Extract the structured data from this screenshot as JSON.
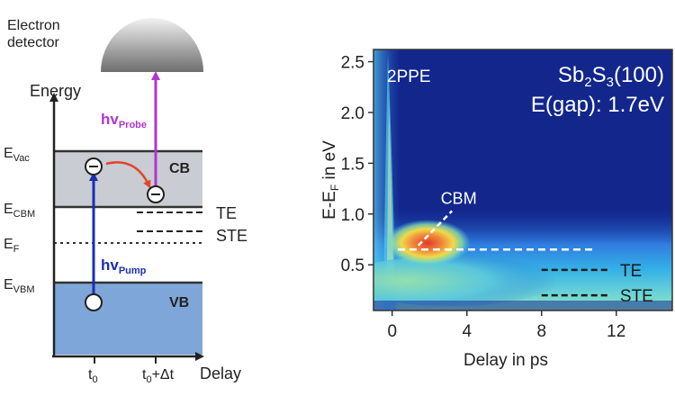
{
  "detector": {
    "line1": "Electron",
    "line2": "detector"
  },
  "diagram": {
    "y_axis_label": "Energy",
    "x_axis_label": "Delay",
    "levels": {
      "vac": {
        "main": "E",
        "sub": "Vac"
      },
      "cbm": {
        "main": "E",
        "sub": "CBM"
      },
      "f": {
        "main": "E",
        "sub": "F"
      },
      "vbm": {
        "main": "E",
        "sub": "VBM"
      }
    },
    "cb_label": "CB",
    "vb_label": "VB",
    "te_label": "TE",
    "ste_label": "STE",
    "probe": {
      "main": "hv",
      "sub": "Probe"
    },
    "pump": {
      "main": "hv",
      "sub": "Pump"
    },
    "t0": {
      "main": "t",
      "sub": "0"
    },
    "t0dt": {
      "main": "t",
      "sub": "0",
      "rest": "+Δt"
    }
  },
  "chart_data": {
    "type": "heatmap",
    "xlabel": "Delay in ps",
    "ylabel_parts": {
      "a": "E-E",
      "sub": "F",
      "b": " in eV"
    },
    "x_ticks": [
      0,
      4,
      8,
      12
    ],
    "y_ticks": [
      0.5,
      1.0,
      1.5,
      2.0,
      2.5
    ],
    "y_tick_labels": [
      "0.5",
      "1.0",
      "1.5",
      "2.0",
      "2.5"
    ],
    "xlim": [
      -1,
      15
    ],
    "ylim": [
      0.05,
      2.62
    ],
    "method_label": "2PPE",
    "sample": {
      "a": "Sb",
      "s1": "2",
      "b": "S",
      "s2": "3",
      "c": "(100)"
    },
    "gap_label": "E(gap): 1.7eV",
    "annotations": {
      "cbm": "CBM",
      "te": "TE",
      "ste": "STE"
    },
    "levels_ev": {
      "cbm": 0.65,
      "te": 0.45,
      "ste": 0.2
    },
    "colors": {
      "background": "#12268c",
      "high": "#d93a30",
      "accent": "#f5c542"
    }
  },
  "colors": {
    "cb_fill": "#c9ccd2",
    "vb_fill": "#7ea6d8",
    "probe_arrow": "#b035d0",
    "pump_arrow": "#1b2fb0",
    "transfer_arrow": "#e0452c"
  }
}
